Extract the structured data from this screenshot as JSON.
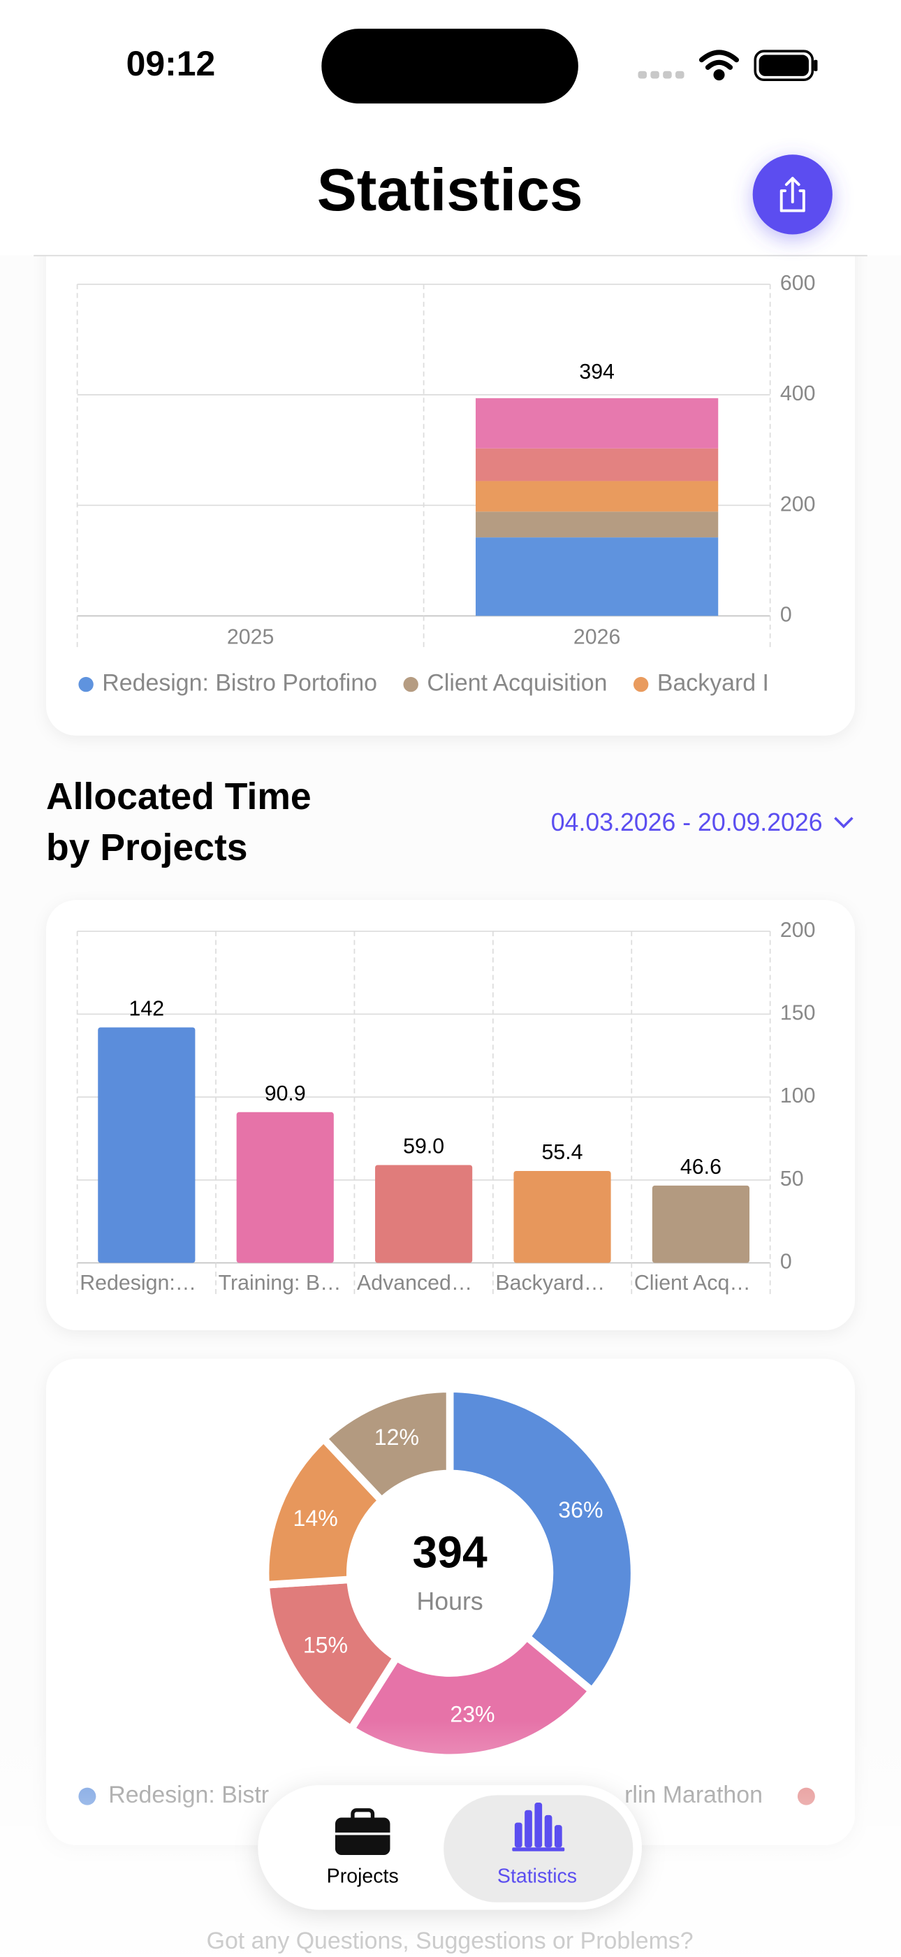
{
  "status": {
    "time": "09:12"
  },
  "header": {
    "title": "Statistics"
  },
  "section": {
    "title": [
      "Allocated Time",
      "by Projects"
    ],
    "date_range": "04.03.2026 - 20.09.2026"
  },
  "chart_data": [
    {
      "type": "stacked_bar",
      "categories": [
        "2025",
        "2026"
      ],
      "series": [
        {
          "name": "Redesign: Bistro Portofino",
          "color": "#5f93de",
          "values": [
            null,
            142
          ]
        },
        {
          "name": "Client Acquisition",
          "color": "#b59c82",
          "values": [
            null,
            46.6
          ]
        },
        {
          "name": "Backyard I",
          "color": "#e99b5e",
          "values": [
            null,
            55.4
          ]
        },
        {
          "color": "#e38281",
          "values": [
            null,
            59.0
          ]
        },
        {
          "color": "#e779ae",
          "values": [
            null,
            90.9
          ]
        }
      ],
      "annotations": [
        "394"
      ],
      "ylim": [
        0,
        600
      ],
      "yticks": [
        0,
        200,
        400,
        600
      ],
      "grid": true
    },
    {
      "type": "bar",
      "categories": [
        "Redesign:…",
        "Training: B…",
        "Advanced…",
        "Backyard…",
        "Client Acq…"
      ],
      "values": [
        142,
        90.9,
        59.0,
        55.4,
        46.6
      ],
      "value_labels": [
        "142",
        "90.9",
        "59.0",
        "55.4",
        "46.6"
      ],
      "colors": [
        "#5b8ddb",
        "#e673a8",
        "#e07c7b",
        "#e7975c",
        "#b39a80"
      ],
      "ylim": [
        0,
        200
      ],
      "yticks": [
        0,
        50,
        100,
        150,
        200
      ],
      "grid": true
    },
    {
      "type": "donut",
      "values": [
        36,
        23,
        15,
        14,
        12
      ],
      "value_labels": [
        "36%",
        "23%",
        "15%",
        "14%",
        "12%"
      ],
      "colors": [
        "#5b8ddb",
        "#e673a8",
        "#e07c7b",
        "#e7975c",
        "#b39a80"
      ],
      "center_value": "394",
      "center_label": "Hours",
      "legend": [
        {
          "label": "Redesign: Bistr",
          "color": "#5b8ddb"
        },
        {
          "label": "rlin Marathon"
        },
        {
          "color": "#e07c7b"
        }
      ]
    }
  ],
  "tabs": [
    "Projects",
    "Statistics"
  ],
  "footer": "Got any Questions, Suggestions or Problems?"
}
